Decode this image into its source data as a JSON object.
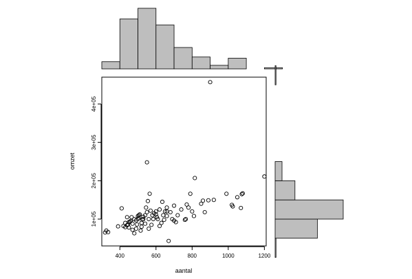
{
  "chart_data": [
    {
      "type": "scatter",
      "xlabel": "aantal",
      "ylabel": "omzet",
      "xlim": [
        300,
        1210
      ],
      "ylim": [
        30000,
        470000
      ],
      "x_ticks": [
        400,
        600,
        800,
        1000,
        1200
      ],
      "x_tick_labels": [
        "400",
        "600",
        "800",
        "1000",
        "1200"
      ],
      "y_ticks": [
        100000,
        200000,
        300000,
        400000
      ],
      "y_tick_labels": [
        "1e+05",
        "2e+05",
        "3e+05",
        "4e+05"
      ],
      "grid": false,
      "points": [
        [
          900,
          457000
        ],
        [
          1200,
          211000
        ],
        [
          550,
          248000
        ],
        [
          815,
          207000
        ],
        [
          325,
          70000
        ],
        [
          318,
          65000
        ],
        [
          335,
          66000
        ],
        [
          390,
          81000
        ],
        [
          410,
          128000
        ],
        [
          420,
          82000
        ],
        [
          430,
          79000
        ],
        [
          440,
          105000
        ],
        [
          445,
          86000
        ],
        [
          450,
          92000
        ],
        [
          460,
          95000
        ],
        [
          470,
          88000
        ],
        [
          480,
          100000
        ],
        [
          490,
          97000
        ],
        [
          500,
          108000
        ],
        [
          505,
          103000
        ],
        [
          510,
          112000
        ],
        [
          520,
          90000
        ],
        [
          525,
          99000
        ],
        [
          530,
          106000
        ],
        [
          540,
          110000
        ],
        [
          545,
          130000
        ],
        [
          550,
          118000
        ],
        [
          555,
          147000
        ],
        [
          560,
          100000
        ],
        [
          565,
          166000
        ],
        [
          570,
          122000
        ],
        [
          580,
          110000
        ],
        [
          590,
          115000
        ],
        [
          600,
          120000
        ],
        [
          605,
          105000
        ],
        [
          610,
          100000
        ],
        [
          620,
          125000
        ],
        [
          630,
          90000
        ],
        [
          635,
          145000
        ],
        [
          640,
          110000
        ],
        [
          650,
          120000
        ],
        [
          660,
          130000
        ],
        [
          670,
          43000
        ],
        [
          680,
          118000
        ],
        [
          690,
          100000
        ],
        [
          700,
          135000
        ],
        [
          710,
          92000
        ],
        [
          720,
          110000
        ],
        [
          740,
          125000
        ],
        [
          760,
          98000
        ],
        [
          770,
          138000
        ],
        [
          780,
          130000
        ],
        [
          790,
          166000
        ],
        [
          800,
          120000
        ],
        [
          810,
          108000
        ],
        [
          850,
          140000
        ],
        [
          860,
          148000
        ],
        [
          870,
          118000
        ],
        [
          890,
          149000
        ],
        [
          920,
          150000
        ],
        [
          990,
          166000
        ],
        [
          1020,
          137000
        ],
        [
          1025,
          133000
        ],
        [
          1050,
          157000
        ],
        [
          1070,
          129000
        ],
        [
          1075,
          165000
        ],
        [
          1080,
          167000
        ],
        [
          480,
          63000
        ],
        [
          490,
          75000
        ],
        [
          500,
          100000
        ],
        [
          515,
          70000
        ],
        [
          520,
          80000
        ],
        [
          470,
          72000
        ],
        [
          450,
          78000
        ],
        [
          440,
          84000
        ],
        [
          430,
          90000
        ],
        [
          560,
          75000
        ],
        [
          575,
          85000
        ],
        [
          585,
          100000
        ],
        [
          600,
          112000
        ],
        [
          620,
          82000
        ],
        [
          645,
          98000
        ],
        [
          660,
          108000
        ],
        [
          700,
          96000
        ],
        [
          765,
          100000
        ],
        [
          660,
          120000
        ],
        [
          540,
          88000
        ],
        [
          530,
          100000
        ],
        [
          505,
          110000
        ],
        [
          495,
          86000
        ],
        [
          465,
          105000
        ],
        [
          455,
          93000
        ]
      ]
    },
    {
      "type": "bar",
      "orientation": "vertical",
      "variable": "aantal",
      "bins": [
        [
          300,
          400
        ],
        [
          400,
          500
        ],
        [
          500,
          600
        ],
        [
          600,
          700
        ],
        [
          700,
          800
        ],
        [
          800,
          900
        ],
        [
          900,
          1000
        ],
        [
          1000,
          1100
        ],
        [
          1100,
          1200
        ],
        [
          1200,
          1300
        ]
      ],
      "values": [
        6,
        42,
        51,
        37,
        18,
        10,
        3,
        9,
        0,
        1
      ]
    },
    {
      "type": "bar",
      "orientation": "horizontal",
      "variable": "omzet",
      "bins": [
        [
          0,
          50000
        ],
        [
          50000,
          100000
        ],
        [
          100000,
          150000
        ],
        [
          150000,
          200000
        ],
        [
          200000,
          250000
        ],
        [
          250000,
          300000
        ],
        [
          300000,
          350000
        ],
        [
          350000,
          400000
        ],
        [
          400000,
          450000
        ],
        [
          450000,
          500000
        ]
      ],
      "values": [
        1,
        49,
        79,
        23,
        8,
        0,
        0,
        0,
        0,
        1
      ]
    }
  ]
}
